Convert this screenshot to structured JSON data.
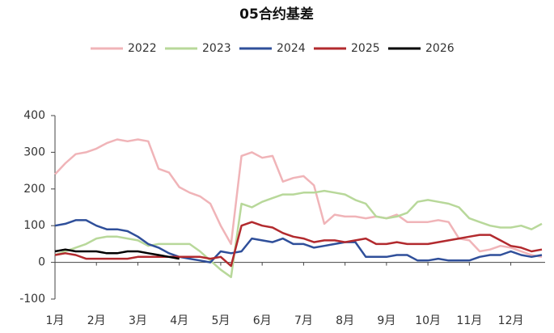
{
  "chart_data": {
    "type": "line",
    "title": "05合约基差",
    "categories": [
      "1月",
      null,
      null,
      null,
      "2月",
      null,
      null,
      null,
      "3月",
      null,
      null,
      null,
      "4月",
      null,
      null,
      null,
      "5月",
      null,
      null,
      null,
      "6月",
      null,
      null,
      null,
      "7月",
      null,
      null,
      null,
      "8月",
      null,
      null,
      null,
      "9月",
      null,
      null,
      null,
      "10月",
      null,
      null,
      null,
      "11月",
      null,
      null,
      null,
      "12月",
      null,
      null,
      null
    ],
    "series": [
      {
        "name": "2022",
        "color": "#f0b4b8",
        "values": [
          240,
          270,
          295,
          300,
          310,
          325,
          335,
          330,
          335,
          330,
          255,
          245,
          205,
          190,
          180,
          160,
          100,
          50,
          290,
          300,
          285,
          290,
          220,
          230,
          235,
          210,
          105,
          130,
          125,
          125,
          120,
          125,
          120,
          130,
          110,
          110,
          110,
          115,
          110,
          65,
          60,
          30,
          35,
          45,
          40,
          30,
          20,
          15
        ]
      },
      {
        "name": "2023",
        "color": "#b8d89a",
        "values": [
          20,
          30,
          40,
          50,
          65,
          70,
          70,
          65,
          60,
          45,
          50,
          50,
          50,
          50,
          30,
          5,
          -20,
          -40,
          160,
          150,
          165,
          175,
          185,
          185,
          190,
          190,
          195,
          190,
          185,
          170,
          160,
          125,
          120,
          125,
          135,
          165,
          170,
          165,
          160,
          150,
          120,
          110,
          100,
          95,
          95,
          100,
          90,
          105
        ]
      },
      {
        "name": "2024",
        "color": "#2f4f9a",
        "values": [
          100,
          105,
          115,
          115,
          100,
          90,
          90,
          85,
          70,
          50,
          40,
          25,
          15,
          10,
          5,
          0,
          30,
          25,
          30,
          65,
          60,
          55,
          65,
          50,
          50,
          40,
          45,
          50,
          55,
          55,
          15,
          15,
          15,
          20,
          20,
          5,
          5,
          10,
          5,
          5,
          5,
          15,
          20,
          20,
          30,
          20,
          15,
          20
        ]
      },
      {
        "name": "2025",
        "color": "#b22a2e",
        "values": [
          20,
          25,
          20,
          10,
          10,
          10,
          10,
          10,
          15,
          15,
          15,
          15,
          15,
          15,
          15,
          10,
          15,
          -10,
          100,
          110,
          100,
          95,
          80,
          70,
          65,
          55,
          60,
          60,
          55,
          60,
          65,
          50,
          50,
          55,
          50,
          50,
          50,
          55,
          60,
          65,
          70,
          75,
          75,
          60,
          45,
          40,
          30,
          35
        ]
      },
      {
        "name": "2026",
        "color": "#000000",
        "values": [
          30,
          35,
          30,
          30,
          30,
          25,
          25,
          30,
          30,
          25,
          20,
          15,
          10,
          null,
          null,
          null,
          null,
          null,
          null,
          null,
          null,
          null,
          null,
          null,
          null,
          null,
          null,
          null,
          null,
          null,
          null,
          null,
          null,
          null,
          null,
          null,
          null,
          null,
          null,
          null,
          null,
          null,
          null,
          null,
          null,
          null,
          null,
          null
        ]
      }
    ],
    "ylim": [
      -100,
      400
    ],
    "yticks": [
      -100,
      0,
      100,
      200,
      300,
      400
    ]
  }
}
